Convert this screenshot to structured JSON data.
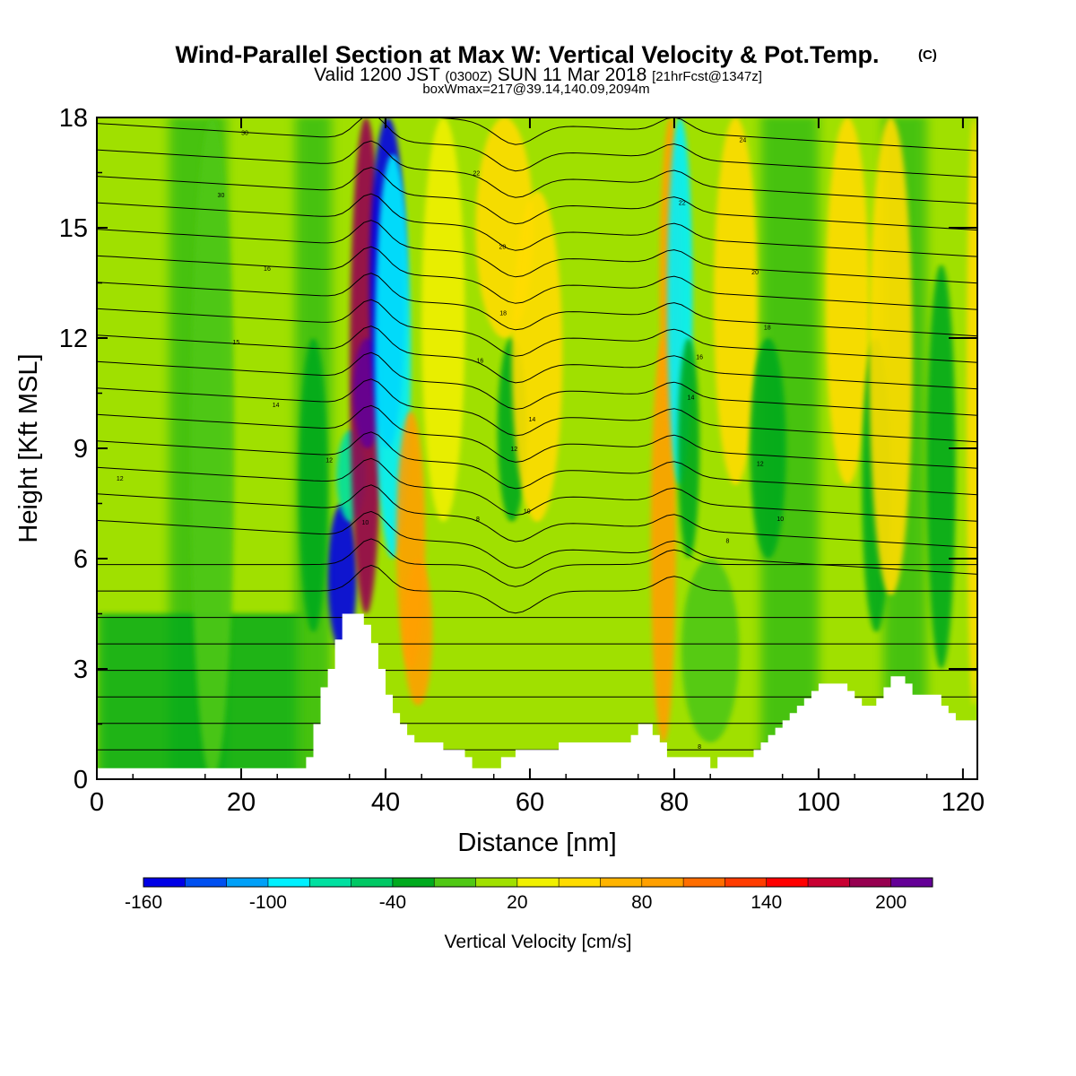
{
  "chart_data": {
    "type": "heatmap",
    "title": "Wind-Parallel Section at Max W: Vertical Velocity & Pot.Temp.",
    "title_mark": "(C)",
    "subtitle_parts": [
      "Valid 1200 JST",
      "(0300Z)",
      "SUN 11 Mar 2018",
      "[21hrFcst@1347z]"
    ],
    "subtitle2": "boxWmax=217@39.14,140.09,2094m",
    "xlabel": "Distance [nm]",
    "ylabel": "Height [Kft MSL]",
    "xlim": [
      0,
      122
    ],
    "ylim": [
      0,
      18
    ],
    "x_ticks": [
      "0",
      "20",
      "40",
      "60",
      "80",
      "100",
      "120"
    ],
    "y_ticks": [
      "0",
      "3",
      "6",
      "9",
      "12",
      "15",
      "18"
    ],
    "colorbar": {
      "label": "Vertical Velocity [cm/s]",
      "tick_labels": [
        "-160",
        "-100",
        "-40",
        "20",
        "80",
        "140",
        "200"
      ],
      "tick_values": [
        -160,
        -100,
        -40,
        20,
        80,
        140,
        200
      ],
      "range": [
        -160,
        220
      ],
      "colors": [
        "#0000e6",
        "#0050f0",
        "#00a0f8",
        "#00f0ff",
        "#00e0a0",
        "#00c864",
        "#00aa1e",
        "#50c814",
        "#a0e000",
        "#f0f000",
        "#ffdc00",
        "#ffb400",
        "#ffa000",
        "#ff6e00",
        "#ff3c00",
        "#ff0000",
        "#c80032",
        "#960050",
        "#640096"
      ]
    },
    "plumes": [
      {
        "x": 34,
        "w": 4,
        "y0": 3.5,
        "y1": 7.5,
        "value": -150
      },
      {
        "x": 35.2,
        "w": 4,
        "y0": 7,
        "y1": 9.5,
        "value": -80
      },
      {
        "x": 37.3,
        "w": 4.5,
        "y0": 4.5,
        "y1": 18,
        "value": 180
      },
      {
        "x": 37.5,
        "w": 4,
        "y0": 9,
        "y1": 12,
        "value": 200
      },
      {
        "x": 40.3,
        "w": 5,
        "y0": 9,
        "y1": 18,
        "value": -160
      },
      {
        "x": 41,
        "w": 5,
        "y0": 6,
        "y1": 17,
        "value": -100
      },
      {
        "x": 43.5,
        "w": 4,
        "y0": 3,
        "y1": 10,
        "value": 80
      },
      {
        "x": 44.5,
        "w": 4,
        "y0": 2,
        "y1": 6,
        "value": 90
      },
      {
        "x": 48,
        "w": 6,
        "y0": 7,
        "y1": 18,
        "value": 30
      },
      {
        "x": 56.5,
        "w": 8,
        "y0": 12,
        "y1": 18,
        "value": 50
      },
      {
        "x": 57.5,
        "w": 4,
        "y0": 7,
        "y1": 12,
        "value": -40
      },
      {
        "x": 61,
        "w": 7,
        "y0": 7,
        "y1": 16,
        "value": 40
      },
      {
        "x": 78.5,
        "w": 3.5,
        "y0": 1,
        "y1": 12,
        "value": 80
      },
      {
        "x": 79.5,
        "w": 3,
        "y0": 9,
        "y1": 18,
        "value": 90
      },
      {
        "x": 80.8,
        "w": 3.5,
        "y0": 8,
        "y1": 18,
        "value": -100
      },
      {
        "x": 82,
        "w": 3,
        "y0": 6,
        "y1": 12,
        "value": -40
      },
      {
        "x": 85,
        "w": 8,
        "y0": 1,
        "y1": 6,
        "value": -20
      },
      {
        "x": 88.5,
        "w": 6,
        "y0": 8,
        "y1": 18,
        "value": 40
      },
      {
        "x": 93,
        "w": 5,
        "y0": 6,
        "y1": 12,
        "value": -30
      },
      {
        "x": 104,
        "w": 6,
        "y0": 8,
        "y1": 18,
        "value": 40
      },
      {
        "x": 108,
        "w": 4,
        "y0": 4,
        "y1": 12,
        "value": -30
      },
      {
        "x": 110,
        "w": 6,
        "y0": 5,
        "y1": 18,
        "value": 40
      },
      {
        "x": 117,
        "w": 4,
        "y0": 3,
        "y1": 14,
        "value": -30
      },
      {
        "x": 121.5,
        "w": 2,
        "y0": 2,
        "y1": 18,
        "value": 50
      },
      {
        "x": 16,
        "w": 6,
        "y0": 0,
        "y1": 18,
        "value": -20
      },
      {
        "x": 30,
        "w": 4,
        "y0": 4,
        "y1": 12,
        "value": -40
      }
    ],
    "terrain": {
      "x": [
        0,
        2,
        4,
        6,
        8,
        10,
        12,
        14,
        16,
        18,
        20,
        22,
        24,
        26,
        28,
        29,
        30,
        31,
        32,
        33,
        34,
        35,
        36,
        37,
        38,
        39,
        40,
        41,
        42,
        43,
        44,
        45,
        46,
        47,
        48,
        49,
        50,
        51,
        52,
        53,
        54,
        55,
        56,
        57,
        58,
        59,
        60,
        62,
        64,
        66,
        68,
        70,
        72,
        74,
        75,
        76,
        77,
        78,
        79,
        80,
        82,
        84,
        85,
        86,
        88,
        90,
        91,
        92,
        93,
        94,
        95,
        96,
        97,
        98,
        99,
        100,
        101,
        102,
        103,
        104,
        105,
        106,
        107,
        108,
        109,
        110,
        111,
        112,
        113,
        114,
        115,
        116,
        117,
        118,
        119,
        120,
        121,
        122
      ],
      "h": [
        0.3,
        0.3,
        0.3,
        0.3,
        0.3,
        0.3,
        0.3,
        0.3,
        0.3,
        0.3,
        0.3,
        0.3,
        0.3,
        0.3,
        0.3,
        0.6,
        1.5,
        2.5,
        3.0,
        3.8,
        4.5,
        4.5,
        4.5,
        4.2,
        3.7,
        3.0,
        2.3,
        1.8,
        1.5,
        1.2,
        1.0,
        1.0,
        1.0,
        1.0,
        0.8,
        0.8,
        0.8,
        0.6,
        0.3,
        0.3,
        0.3,
        0.3,
        0.6,
        0.6,
        0.8,
        0.8,
        0.8,
        0.8,
        1.0,
        1.0,
        1.0,
        1.0,
        1.0,
        1.2,
        1.5,
        1.5,
        1.2,
        1.0,
        0.6,
        0.6,
        0.6,
        0.6,
        0.3,
        0.6,
        0.6,
        0.6,
        0.8,
        1.0,
        1.2,
        1.4,
        1.6,
        1.8,
        2.0,
        2.2,
        2.4,
        2.6,
        2.6,
        2.6,
        2.6,
        2.4,
        2.2,
        2.0,
        2.0,
        2.2,
        2.5,
        2.8,
        2.8,
        2.6,
        2.3,
        2.3,
        2.3,
        2.3,
        2.0,
        1.8,
        1.6,
        1.6,
        1.6,
        1.6
      ]
    },
    "contour_labels": [
      {
        "text": "30",
        "x": 20.5,
        "y": 17.6
      },
      {
        "text": "30",
        "x": 17.2,
        "y": 15.9
      },
      {
        "text": "16",
        "x": 23.6,
        "y": 13.9
      },
      {
        "text": "15",
        "x": 19.3,
        "y": 11.9
      },
      {
        "text": "14",
        "x": 24.8,
        "y": 10.2
      },
      {
        "text": "12",
        "x": 3.2,
        "y": 8.2
      },
      {
        "text": "12",
        "x": 32.2,
        "y": 8.7
      },
      {
        "text": "10",
        "x": 37.2,
        "y": 7.0
      },
      {
        "text": "22",
        "x": 52.6,
        "y": 16.5
      },
      {
        "text": "20",
        "x": 56.2,
        "y": 14.5
      },
      {
        "text": "18",
        "x": 56.3,
        "y": 12.7
      },
      {
        "text": "16",
        "x": 53.1,
        "y": 11.4
      },
      {
        "text": "14",
        "x": 60.3,
        "y": 9.8
      },
      {
        "text": "12",
        "x": 57.8,
        "y": 9.0
      },
      {
        "text": "10",
        "x": 59.6,
        "y": 7.3
      },
      {
        "text": "8",
        "x": 52.8,
        "y": 7.1
      },
      {
        "text": "24",
        "x": 89.5,
        "y": 17.4
      },
      {
        "text": "22",
        "x": 81.1,
        "y": 15.7
      },
      {
        "text": "20",
        "x": 91.2,
        "y": 13.8
      },
      {
        "text": "18",
        "x": 92.9,
        "y": 12.3
      },
      {
        "text": "16",
        "x": 83.5,
        "y": 11.5
      },
      {
        "text": "14",
        "x": 82.3,
        "y": 10.4
      },
      {
        "text": "12",
        "x": 91.9,
        "y": 8.6
      },
      {
        "text": "10",
        "x": 94.7,
        "y": 7.1
      },
      {
        "text": "8",
        "x": 87.4,
        "y": 6.5
      },
      {
        "text": "8",
        "x": 83.5,
        "y": 0.9
      }
    ]
  }
}
